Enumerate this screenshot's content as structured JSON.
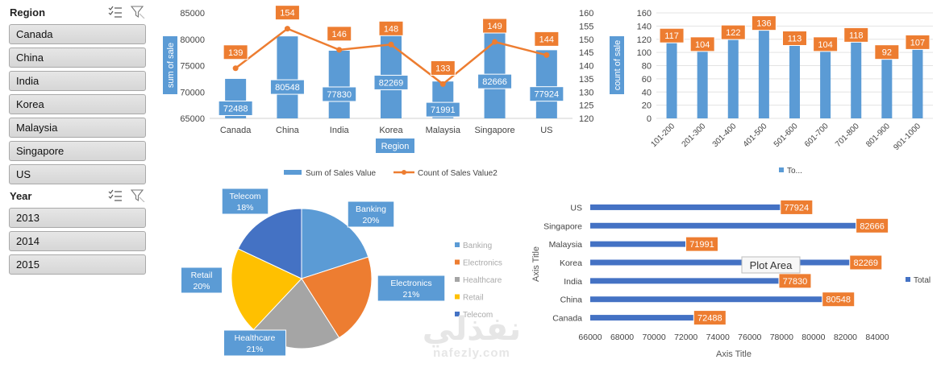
{
  "region_slicer": {
    "title": "Region",
    "items": [
      "Canada",
      "China",
      "India",
      "Korea",
      "Malaysia",
      "Singapore",
      "US"
    ]
  },
  "year_slicer": {
    "title": "Year",
    "items": [
      "2013",
      "2014",
      "2015"
    ]
  },
  "icons": [
    "multi-select-icon",
    "clear-filter-icon"
  ],
  "colors": {
    "bar_blue": "#5b9bd5",
    "line_orange": "#ed7d31",
    "hbar_blue": "#4472c4",
    "pie_banking": "#5b9bd5",
    "pie_electronics": "#ed7d31",
    "pie_healthcare": "#a5a5a5",
    "pie_retail": "#ffc000",
    "pie_telecom": "#4472c4"
  },
  "watermark": {
    "arabic": "نفذلي",
    "latin": "nafezly.com"
  },
  "chart_data": [
    {
      "type": "bar",
      "name": "sales-combo",
      "categories": [
        "Canada",
        "China",
        "India",
        "Korea",
        "Malaysia",
        "Singapore",
        "US"
      ],
      "series": [
        {
          "name": "Sum of Sales Value",
          "values": [
            72488,
            80548,
            77830,
            82269,
            71991,
            82666,
            77924
          ]
        },
        {
          "name": "Count of Sales Value2",
          "type": "line",
          "axis": "secondary",
          "values": [
            139,
            154,
            146,
            148,
            133,
            149,
            144
          ]
        }
      ],
      "xlabel": "Region",
      "ylabel": "sum of sale",
      "y2label": "count of sale",
      "ylim": [
        65000,
        85000
      ],
      "yticks": [
        65000,
        70000,
        75000,
        80000,
        85000
      ],
      "y2lim": [
        120,
        160
      ],
      "y2ticks": [
        120,
        125,
        130,
        135,
        140,
        145,
        150,
        155,
        160
      ],
      "legend": "bottom"
    },
    {
      "type": "bar",
      "name": "range-bars",
      "categories": [
        "101-200",
        "201-300",
        "301-400",
        "401-500",
        "501-600",
        "601-700",
        "701-800",
        "801-900",
        "901-1000"
      ],
      "values": [
        117,
        104,
        122,
        136,
        113,
        104,
        118,
        92,
        107
      ],
      "ylim": [
        0,
        160
      ],
      "yticks": [
        0,
        20,
        40,
        60,
        80,
        100,
        120,
        140,
        160
      ],
      "legend_label": "To...",
      "legend": "bottom"
    },
    {
      "type": "pie",
      "name": "industry-pie",
      "categories": [
        "Banking",
        "Electronics",
        "Healthcare",
        "Retail",
        "Telecom"
      ],
      "values": [
        20,
        21,
        21,
        20,
        18
      ],
      "legend": "right"
    },
    {
      "type": "bar",
      "name": "region-hbar",
      "orientation": "horizontal",
      "categories": [
        "Canada",
        "China",
        "India",
        "Korea",
        "Malaysia",
        "Singapore",
        "US"
      ],
      "values": [
        72488,
        80548,
        77830,
        82269,
        71991,
        82666,
        77924
      ],
      "xlim": [
        66000,
        84000
      ],
      "xticks": [
        66000,
        68000,
        70000,
        72000,
        74000,
        76000,
        78000,
        80000,
        82000,
        84000
      ],
      "xlabel": "Axis Title",
      "ylabel": "Axis Title",
      "legend_label": "Total",
      "legend": "right",
      "tooltip": "Plot Area"
    }
  ]
}
